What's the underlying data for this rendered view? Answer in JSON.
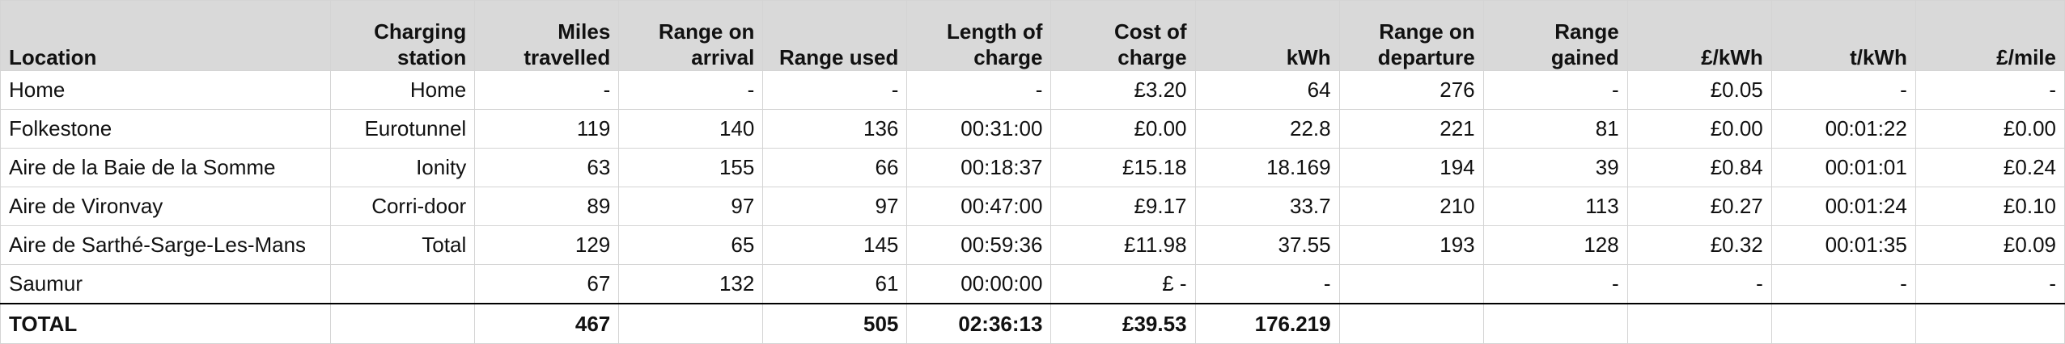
{
  "headers": [
    "Location",
    "Charging\nstation",
    "Miles\ntravelled",
    "Range on\narrival",
    "Range used",
    "Length of\ncharge",
    "Cost of\ncharge",
    "kWh",
    "Range on\ndeparture",
    "Range\ngained",
    "£/kWh",
    "t/kWh",
    "£/mile"
  ],
  "rows": [
    [
      "Home",
      "Home",
      "-",
      "-",
      "-",
      "-",
      "£3.20",
      "64",
      "276",
      "-",
      "£0.05",
      "-",
      "-"
    ],
    [
      "Folkestone",
      "Eurotunnel",
      "119",
      "140",
      "136",
      "00:31:00",
      "£0.00",
      "22.8",
      "221",
      "81",
      "£0.00",
      "00:01:22",
      "£0.00"
    ],
    [
      "Aire de la Baie de la Somme",
      "Ionity",
      "63",
      "155",
      "66",
      "00:18:37",
      "£15.18",
      "18.169",
      "194",
      "39",
      "£0.84",
      "00:01:01",
      "£0.24"
    ],
    [
      "Aire de Vironvay",
      "Corri-door",
      "89",
      "97",
      "97",
      "00:47:00",
      "£9.17",
      "33.7",
      "210",
      "113",
      "£0.27",
      "00:01:24",
      "£0.10"
    ],
    [
      "Aire de Sarthé-Sarge-Les-Mans",
      "Total",
      "129",
      "65",
      "145",
      "00:59:36",
      "£11.98",
      "37.55",
      "193",
      "128",
      "£0.32",
      "00:01:35",
      "£0.09"
    ],
    [
      "Saumur",
      "",
      "67",
      "132",
      "61",
      "00:00:00",
      "£ -",
      "-",
      "",
      "-",
      "-",
      "-",
      "-"
    ]
  ],
  "total": [
    "TOTAL",
    "",
    "467",
    "",
    "505",
    "02:36:13",
    "£39.53",
    "176.219",
    "",
    "",
    "",
    "",
    ""
  ]
}
